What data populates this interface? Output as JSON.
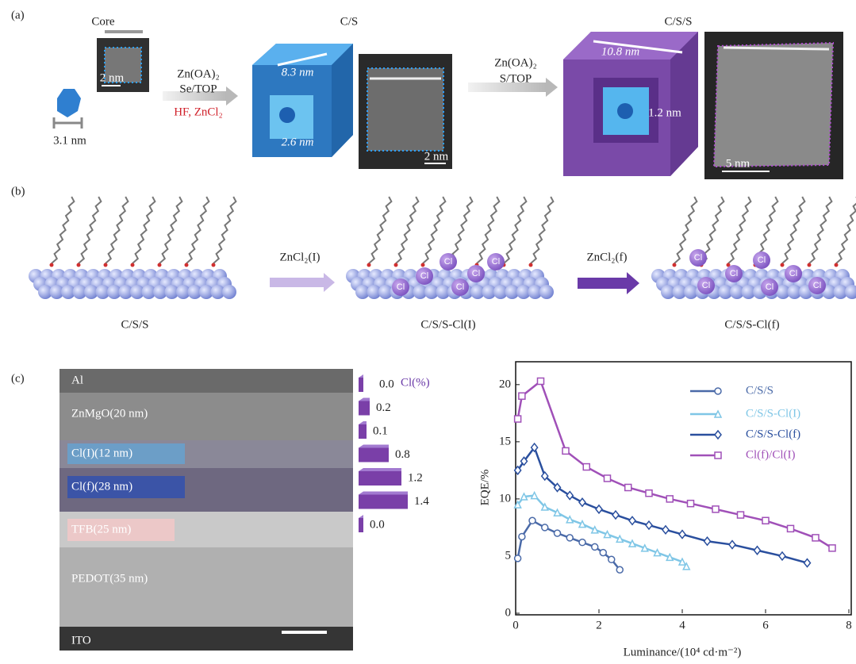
{
  "panel_a": {
    "label": "(a)",
    "stages": [
      "Core",
      "C/S",
      "C/S/S"
    ],
    "core_size": "3.1 nm",
    "core_scale": "2 nm",
    "step1": {
      "reagents": [
        "Zn(OA)₂",
        "Se/TOP"
      ],
      "additives": "HF, ZnCl₂"
    },
    "cs_size": "8.3 nm",
    "cs_core": "2.6 nm",
    "cs_scale": "2 nm",
    "step2": {
      "reagents": [
        "Zn(OA)₂",
        "S/TOP"
      ]
    },
    "css_size": "10.8 nm",
    "css_shell": "1.2 nm",
    "css_scale": "5 nm"
  },
  "panel_b": {
    "label": "(b)",
    "steps": [
      "ZnCl₂(I)",
      "ZnCl₂(f)"
    ],
    "captions": [
      "C/S/S",
      "C/S/S-Cl(I)",
      "C/S/S-Cl(f)"
    ],
    "atom_label": "Cl"
  },
  "panel_c": {
    "label": "(c)",
    "layers": [
      "Al",
      "ZnMgO(20 nm)",
      "Cl(I)(12 nm)",
      "Cl(f)(28 nm)",
      "TFB(25 nm)",
      "PEDOT(35 nm)",
      "ITO"
    ]
  },
  "chart_data": [
    {
      "type": "bar",
      "orientation": "horizontal",
      "title": "Cl(%)",
      "values": [
        0.0,
        0.2,
        0.1,
        0.8,
        1.2,
        1.4,
        0.0
      ],
      "value_labels": [
        "0.0",
        "0.2",
        "0.1",
        "0.8",
        "1.2",
        "1.4",
        "0.0"
      ],
      "color": "#7a3fa8"
    },
    {
      "type": "line",
      "xlabel": "Luminance/(10⁴ cd·m⁻²)",
      "ylabel": "EQE/%",
      "xlim": [
        0,
        8
      ],
      "ylim": [
        0,
        22
      ],
      "xticks": [
        0,
        2,
        4,
        6,
        8
      ],
      "yticks": [
        0,
        5,
        10,
        15,
        20
      ],
      "legend": "upper right",
      "series": [
        {
          "name": "C/S/S",
          "color": "#4a6aa8",
          "marker": "circle",
          "x": [
            0.05,
            0.15,
            0.4,
            0.7,
            1.0,
            1.3,
            1.6,
            1.9,
            2.1,
            2.3,
            2.5
          ],
          "values": [
            4.8,
            6.7,
            8.1,
            7.5,
            7.0,
            6.6,
            6.2,
            5.8,
            5.3,
            4.7,
            3.8
          ]
        },
        {
          "name": "C/S/S-Cl(I)",
          "color": "#7fc6e6",
          "marker": "triangle",
          "x": [
            0.05,
            0.2,
            0.45,
            0.7,
            1.0,
            1.3,
            1.6,
            1.9,
            2.2,
            2.5,
            2.8,
            3.1,
            3.4,
            3.7,
            4.0,
            4.1
          ],
          "values": [
            9.5,
            10.2,
            10.3,
            9.3,
            8.8,
            8.2,
            7.8,
            7.3,
            6.9,
            6.5,
            6.1,
            5.7,
            5.3,
            4.9,
            4.5,
            4.1
          ]
        },
        {
          "name": "C/S/S-Cl(f)",
          "color": "#2a4f9e",
          "marker": "diamond",
          "x": [
            0.05,
            0.2,
            0.45,
            0.7,
            1.0,
            1.3,
            1.6,
            2.0,
            2.4,
            2.8,
            3.2,
            3.6,
            4.0,
            4.6,
            5.2,
            5.8,
            6.4,
            7.0
          ],
          "values": [
            12.5,
            13.3,
            14.5,
            12.0,
            11.0,
            10.3,
            9.7,
            9.1,
            8.6,
            8.1,
            7.7,
            7.3,
            6.9,
            6.3,
            6.0,
            5.5,
            5.0,
            4.4
          ]
        },
        {
          "name": "Cl(f)/Cl(I)",
          "color": "#a050b8",
          "marker": "square",
          "x": [
            0.05,
            0.15,
            0.6,
            1.2,
            1.7,
            2.2,
            2.7,
            3.2,
            3.7,
            4.2,
            4.8,
            5.4,
            6.0,
            6.6,
            7.2,
            7.6
          ],
          "values": [
            17.0,
            19.0,
            20.3,
            14.2,
            12.8,
            11.8,
            11.0,
            10.5,
            10.0,
            9.6,
            9.1,
            8.6,
            8.1,
            7.4,
            6.6,
            5.7
          ]
        }
      ]
    }
  ]
}
